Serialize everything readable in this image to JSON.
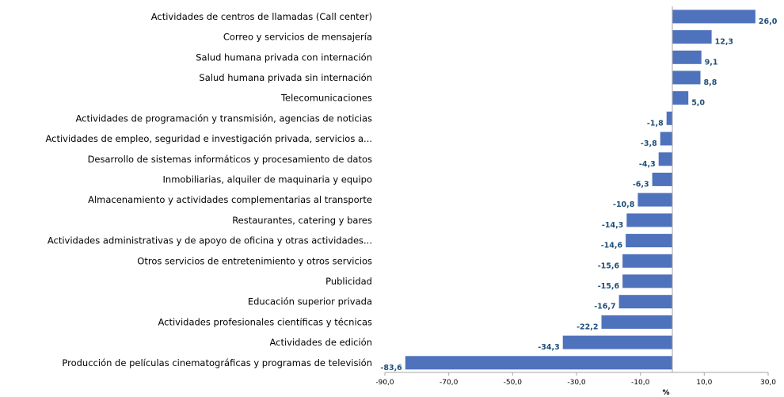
{
  "chart_data": {
    "type": "bar",
    "orientation": "horizontal",
    "categories": [
      "Actividades de centros de llamadas (Call center)",
      "Correo y servicios de mensajería",
      "Salud humana privada con internación",
      "Salud humana privada sin internación",
      "Telecomunicaciones",
      "Actividades de programación y transmisión,  agencias de noticias",
      "Actividades de empleo, seguridad e investigación privada, servicios a...",
      "Desarrollo de sistemas informáticos y procesamiento de datos",
      "Inmobiliarias, alquiler de maquinaria y equipo",
      "Almacenamiento y actividades complementarias al transporte",
      "Restaurantes, catering y bares",
      "Actividades administrativas y de apoyo de oficina y otras actividades...",
      "Otros servicios de entretenimiento y otros servicios",
      "Publicidad",
      "Educación superior privada",
      "Actividades profesionales científicas y técnicas",
      "Actividades de edición",
      "Producción de películas cinematográficas y programas de televisión"
    ],
    "values": [
      26.0,
      12.3,
      9.1,
      8.8,
      5.0,
      -1.8,
      -3.8,
      -4.3,
      -6.3,
      -10.8,
      -14.3,
      -14.6,
      -15.6,
      -15.6,
      -16.7,
      -22.2,
      -34.3,
      -83.6
    ],
    "value_labels": [
      "26,0",
      "12,3",
      "9,1",
      "8,8",
      "5,0",
      "-1,8",
      "-3,8",
      "-4,3",
      "-6,3",
      "-10,8",
      "-14,3",
      "-14,6",
      "-15,6",
      "-15,6",
      "-16,7",
      "-22,2",
      "-34,3",
      "-83,6"
    ],
    "xlim": [
      -90,
      30
    ],
    "x_ticks": [
      -90,
      -70,
      -50,
      -30,
      -10,
      10,
      30
    ],
    "x_tick_labels": [
      "-90,0",
      "-70,0",
      "-50,0",
      "-30,0",
      "-10,0",
      "10,0",
      "30,0"
    ],
    "xlabel": "%",
    "ylabel": "",
    "title": "",
    "grid": false,
    "legend": "none",
    "colors": {
      "bar": "#4f72bd",
      "value_label": "#1f4e79",
      "axis": "#a6a6a6"
    }
  }
}
